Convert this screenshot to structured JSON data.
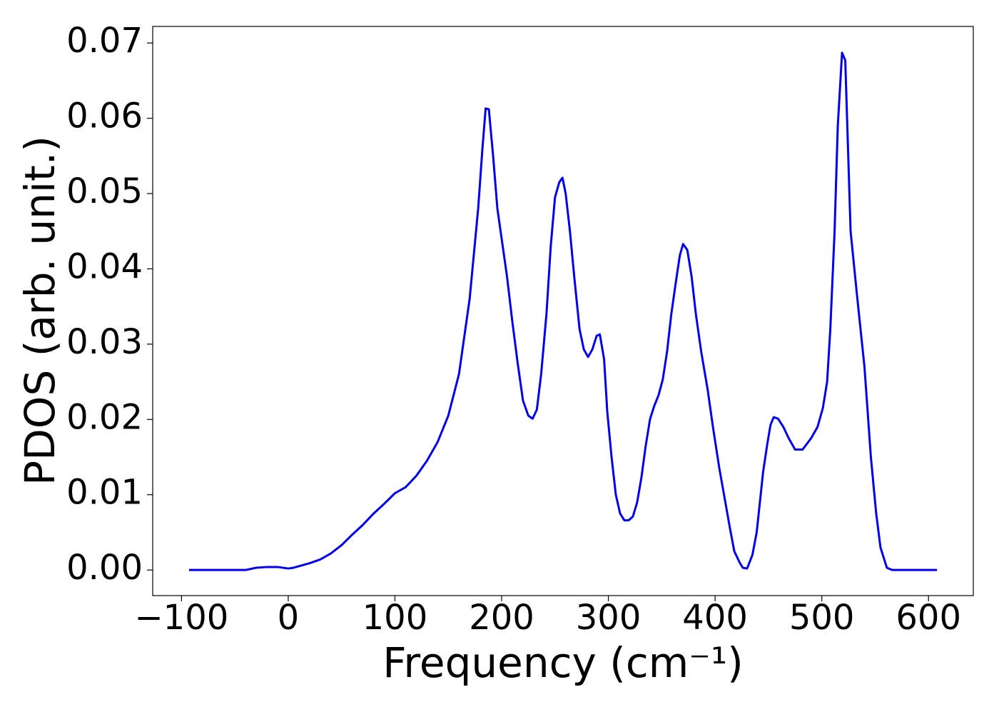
{
  "chart_data": {
    "type": "line",
    "x_label": "Frequency (cm⁻¹)",
    "y_label": "PDOS (arb. unit.)",
    "xlim": [
      -127,
      642
    ],
    "ylim": [
      -0.0034,
      0.0722
    ],
    "xticks": [
      {
        "value": -100,
        "label": "−100"
      },
      0,
      100,
      200,
      300,
      400,
      500,
      600
    ],
    "yticks": [
      {
        "value": 0,
        "label": "0.00"
      },
      0.01,
      0.02,
      0.03,
      0.04,
      0.05,
      0.06,
      0.07
    ],
    "grid": false,
    "series": [
      {
        "color": "#0000ee",
        "x": [
          -93,
          -40,
          -30,
          -20,
          -10,
          0,
          5,
          20,
          30,
          40,
          50,
          60,
          70,
          80,
          90,
          100,
          110,
          120,
          130,
          140,
          150,
          160,
          170,
          178,
          182,
          185,
          188,
          192,
          196,
          200,
          205,
          210,
          215,
          220,
          225,
          229,
          233,
          237,
          242,
          246,
          250,
          254,
          257,
          260,
          264,
          268,
          273,
          277,
          281,
          285,
          289,
          292,
          296,
          299,
          303,
          307,
          311,
          315,
          319,
          323,
          327,
          331,
          335,
          339,
          343,
          347,
          351,
          355,
          359,
          363,
          367,
          370,
          374,
          378,
          382,
          387,
          393,
          398,
          404,
          409,
          414,
          418,
          423,
          426,
          430,
          435,
          439,
          445,
          449,
          452,
          455,
          459,
          464,
          469,
          475,
          482,
          490,
          496,
          501,
          505,
          508,
          512,
          515,
          519,
          522,
          527,
          533,
          540,
          546,
          551,
          555,
          561,
          566,
          608
        ],
        "values": [
          0,
          0,
          0.0003,
          0.0004,
          0.0004,
          0.0002,
          0.0003,
          0.0009,
          0.0014,
          0.0022,
          0.0033,
          0.0047,
          0.006,
          0.0075,
          0.0088,
          0.0102,
          0.011,
          0.0125,
          0.0145,
          0.017,
          0.0205,
          0.026,
          0.036,
          0.048,
          0.056,
          0.0613,
          0.0612,
          0.055,
          0.048,
          0.044,
          0.039,
          0.033,
          0.0275,
          0.0225,
          0.0205,
          0.0201,
          0.0213,
          0.026,
          0.034,
          0.043,
          0.0495,
          0.0515,
          0.0521,
          0.05,
          0.045,
          0.039,
          0.032,
          0.0293,
          0.0283,
          0.0293,
          0.0311,
          0.0313,
          0.028,
          0.021,
          0.015,
          0.01,
          0.0075,
          0.0066,
          0.0066,
          0.0071,
          0.009,
          0.0123,
          0.0165,
          0.02,
          0.0218,
          0.0232,
          0.0253,
          0.029,
          0.034,
          0.038,
          0.0418,
          0.0433,
          0.0425,
          0.039,
          0.034,
          0.029,
          0.024,
          0.019,
          0.0135,
          0.0095,
          0.0055,
          0.0025,
          0.001,
          0.0003,
          0.0002,
          0.002,
          0.005,
          0.013,
          0.0168,
          0.0193,
          0.0203,
          0.0201,
          0.019,
          0.0175,
          0.016,
          0.016,
          0.0175,
          0.019,
          0.0215,
          0.025,
          0.032,
          0.045,
          0.059,
          0.0687,
          0.0677,
          0.045,
          0.0365,
          0.027,
          0.015,
          0.0075,
          0.003,
          0.0003,
          0,
          0
        ]
      }
    ]
  }
}
